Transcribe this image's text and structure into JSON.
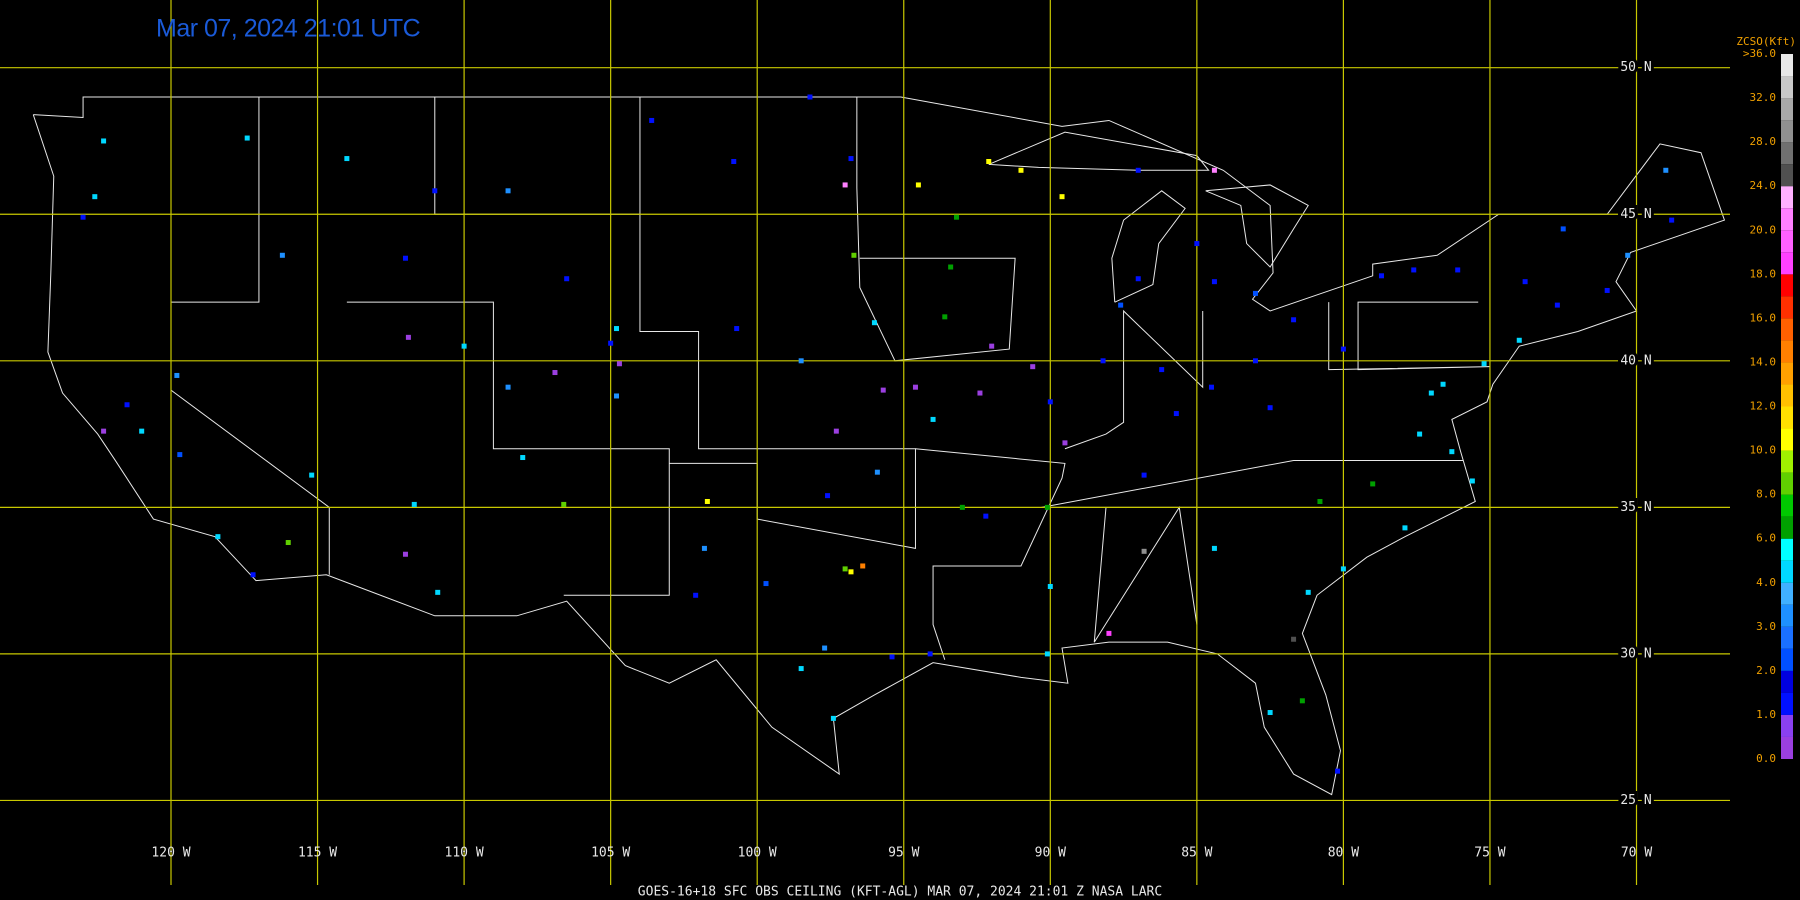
{
  "map": {
    "title": "Mar 07, 2024 21:01 UTC",
    "footer": "GOES-16+18  SFC OBS CEILING (KFT-AGL)  MAR 07, 2024 21:01 Z   NASA LARC",
    "grid_color": "#c8c800",
    "lon_ticks": [
      {
        "value": -120,
        "label": "120 W"
      },
      {
        "value": -115,
        "label": "115 W"
      },
      {
        "value": -110,
        "label": "110 W"
      },
      {
        "value": -105,
        "label": "105 W"
      },
      {
        "value": -100,
        "label": "100 W"
      },
      {
        "value": -95,
        "label": "95 W"
      },
      {
        "value": -90,
        "label": "90 W"
      },
      {
        "value": -85,
        "label": "85 W"
      },
      {
        "value": -80,
        "label": "80 W"
      },
      {
        "value": -75,
        "label": "75 W"
      },
      {
        "value": -70,
        "label": "70 W"
      }
    ],
    "lat_ticks": [
      {
        "value": 50,
        "label": "50 N"
      },
      {
        "value": 45,
        "label": "45 N"
      },
      {
        "value": 40,
        "label": "40 N"
      },
      {
        "value": 35,
        "label": "35 N"
      },
      {
        "value": 30,
        "label": "30 N"
      },
      {
        "value": 25,
        "label": "25 N"
      }
    ],
    "legend": {
      "title": "ZCSO(Kft)",
      "levels": [
        {
          "value": 0,
          "label": "0.0"
        },
        {
          "value": 1,
          "label": "1.0"
        },
        {
          "value": 2,
          "label": "2.0"
        },
        {
          "value": 3,
          "label": "3.0"
        },
        {
          "value": 4,
          "label": "4.0"
        },
        {
          "value": 6,
          "label": "6.0"
        },
        {
          "value": 8,
          "label": "8.0"
        },
        {
          "value": 10,
          "label": "10.0"
        },
        {
          "value": 12,
          "label": "12.0"
        },
        {
          "value": 14,
          "label": "14.0"
        },
        {
          "value": 16,
          "label": "16.0"
        },
        {
          "value": 18,
          "label": "18.0"
        },
        {
          "value": 20,
          "label": "20.0"
        },
        {
          "value": 24,
          "label": "24.0"
        },
        {
          "value": 28,
          "label": "28.0"
        },
        {
          "value": 32,
          "label": "32.0"
        },
        {
          "value": 36,
          "label": ">36.0"
        }
      ],
      "colors": [
        [
          "#9b3fe0",
          "#8a40f0"
        ],
        [
          "#0010ff",
          "#0000e0"
        ],
        [
          "#0050ff",
          "#1a70ff"
        ],
        [
          "#1e90ff",
          "#40b0ff"
        ],
        [
          "#00d8ff",
          "#00ffff"
        ],
        [
          "#00a000",
          "#00c800"
        ],
        [
          "#60d000",
          "#a0f000"
        ],
        [
          "#ffff00",
          "#ffe000"
        ],
        [
          "#ffc000",
          "#ffa000"
        ],
        [
          "#ff8000",
          "#ff6000"
        ],
        [
          "#ff3000",
          "#ff0000"
        ],
        [
          "#ff40ff",
          "#ff60ff"
        ],
        [
          "#ff80ff",
          "#ffb0ff"
        ],
        [
          "#505050",
          "#707070"
        ],
        [
          "#909090",
          "#a8a8a8"
        ],
        [
          "#c8c8c8",
          "#e8e8e8"
        ]
      ]
    },
    "stations": [
      [
        -71,
        42.4,
        1.5
      ],
      [
        -73.8,
        42.7,
        1.2
      ],
      [
        -74,
        40.7,
        4.5
      ],
      [
        -75.2,
        39.9,
        4.8
      ],
      [
        -72.7,
        41.9,
        1.5
      ],
      [
        -70.3,
        43.6,
        3.5
      ],
      [
        -68.8,
        44.8,
        1.5
      ],
      [
        -69,
        46.5,
        3.5
      ],
      [
        -72.5,
        44.5,
        2.5
      ],
      [
        -76.1,
        43.1,
        1.5
      ],
      [
        -78.7,
        42.9,
        1.8
      ],
      [
        -77.6,
        43.1,
        1.2
      ],
      [
        -77,
        38.9,
        4.5
      ],
      [
        -76.6,
        39.2,
        4.2
      ],
      [
        -77.4,
        37.5,
        4.5
      ],
      [
        -76.3,
        36.9,
        5
      ],
      [
        -75.6,
        35.9,
        4.8
      ],
      [
        -77.9,
        34.3,
        4.5
      ],
      [
        -79,
        35.8,
        7
      ],
      [
        -80.8,
        35.2,
        6.5
      ],
      [
        -80,
        32.9,
        4.5
      ],
      [
        -81.2,
        32.1,
        4.2
      ],
      [
        -84.5,
        39.1,
        1.2
      ],
      [
        -83,
        40,
        1.5
      ],
      [
        -81.7,
        41.4,
        1.3
      ],
      [
        -85.7,
        38.2,
        1.5
      ],
      [
        -86.2,
        39.7,
        1.2
      ],
      [
        -87.6,
        41.9,
        2.5
      ],
      [
        -88.2,
        40,
        1.4
      ],
      [
        -84.4,
        42.7,
        1.6
      ],
      [
        -83,
        42.3,
        2
      ],
      [
        -80,
        40.4,
        1.8
      ],
      [
        -82.5,
        38.4,
        1.1
      ],
      [
        -86.8,
        36.1,
        1.5
      ],
      [
        -90,
        38.6,
        1.3
      ],
      [
        -89.5,
        37.2,
        0.8
      ],
      [
        -87,
        42.8,
        1.5
      ],
      [
        -93.6,
        41.5,
        6.5
      ],
      [
        -92.4,
        38.9,
        0.8
      ],
      [
        -94.6,
        39.1,
        0.5
      ],
      [
        -97.3,
        37.6,
        0.7
      ],
      [
        -95.7,
        39,
        0.6
      ],
      [
        -96,
        41.3,
        5
      ],
      [
        -98.5,
        40,
        3.8
      ],
      [
        -100.7,
        41.1,
        1.5
      ],
      [
        -93.2,
        44.9,
        7
      ],
      [
        -92.1,
        46.8,
        10.5
      ],
      [
        -91,
        46.5,
        10.5
      ],
      [
        -89.6,
        45.6,
        11
      ],
      [
        -94.5,
        46,
        11
      ],
      [
        -96.8,
        46.9,
        1.5
      ],
      [
        -100.8,
        46.8,
        1.5
      ],
      [
        -98.2,
        49,
        1.2
      ],
      [
        -103.6,
        48.2,
        1.6
      ],
      [
        -96.7,
        43.6,
        8.5
      ],
      [
        -93.4,
        43.2,
        6.5
      ],
      [
        -104.7,
        39.9,
        0.8
      ],
      [
        -104.8,
        38.8,
        3.5
      ],
      [
        -105,
        40.6,
        1.2
      ],
      [
        -106.9,
        39.6,
        0.5
      ],
      [
        -108.5,
        39.1,
        3.5
      ],
      [
        -110,
        40.5,
        5
      ],
      [
        -111.9,
        40.8,
        0.7
      ],
      [
        -112,
        43.5,
        1.5
      ],
      [
        -116.2,
        43.6,
        3.5
      ],
      [
        -114,
        46.9,
        4
      ],
      [
        -111,
        45.8,
        1.4
      ],
      [
        -108.5,
        45.8,
        3.5
      ],
      [
        -106.5,
        42.8,
        1.2
      ],
      [
        -104.8,
        41.1,
        4
      ],
      [
        -101.7,
        35.2,
        10.5
      ],
      [
        -102.1,
        32,
        1.5
      ],
      [
        -106.6,
        35.1,
        8
      ],
      [
        -108,
        36.7,
        4.5
      ],
      [
        -112,
        33.4,
        0.5
      ],
      [
        -111.7,
        35.1,
        4.5
      ],
      [
        -110.9,
        32.1,
        4.2
      ],
      [
        -115.2,
        36.1,
        4.5
      ],
      [
        -119.8,
        39.5,
        3.5
      ],
      [
        -117.4,
        47.6,
        4.5
      ],
      [
        -122.3,
        47.5,
        4.5
      ],
      [
        -122.6,
        45.6,
        4.4
      ],
      [
        -123,
        44.9,
        1.5
      ],
      [
        -121.5,
        38.5,
        1.5
      ],
      [
        -122.3,
        37.6,
        0.8
      ],
      [
        -119.7,
        36.8,
        2.5
      ],
      [
        -118.4,
        34,
        4.5
      ],
      [
        -117.2,
        32.7,
        1.6
      ],
      [
        -116,
        33.8,
        8
      ],
      [
        -121,
        37.6,
        4.5
      ],
      [
        -97,
        32.9,
        8
      ],
      [
        -96.8,
        32.8,
        10.5
      ],
      [
        -97.7,
        30.2,
        3.5
      ],
      [
        -98.5,
        29.5,
        4.5
      ],
      [
        -95.4,
        29.9,
        1.5
      ],
      [
        -97.4,
        27.8,
        4.2
      ],
      [
        -94.1,
        30,
        1.5
      ],
      [
        -92.2,
        34.7,
        1.4
      ],
      [
        -90.1,
        35,
        6.5
      ],
      [
        -90,
        32.3,
        4.2
      ],
      [
        -86.8,
        33.5,
        28
      ],
      [
        -84.4,
        33.6,
        4.5
      ],
      [
        -81.7,
        30.5,
        26
      ],
      [
        -82.5,
        28,
        4.5
      ],
      [
        -80.2,
        26,
        1.5
      ],
      [
        -81.4,
        28.4,
        7
      ],
      [
        -90.1,
        30,
        4.5
      ],
      [
        -88,
        30.7,
        18
      ],
      [
        -95.9,
        36.2,
        3.5
      ],
      [
        -97.6,
        35.4,
        1.5
      ],
      [
        -96.4,
        33,
        14
      ],
      [
        -99.7,
        32.4,
        2.5
      ],
      [
        -101.8,
        33.6,
        3.5
      ],
      [
        -87,
        46.5,
        1.5
      ],
      [
        -84.4,
        46.5,
        22
      ],
      [
        -92,
        40.5,
        0.6
      ],
      [
        -94,
        38,
        4.5
      ],
      [
        -93,
        35,
        6.5
      ],
      [
        -90.6,
        39.8,
        0.6
      ],
      [
        -85,
        44,
        1.5
      ],
      [
        -97,
        46,
        20
      ]
    ]
  }
}
